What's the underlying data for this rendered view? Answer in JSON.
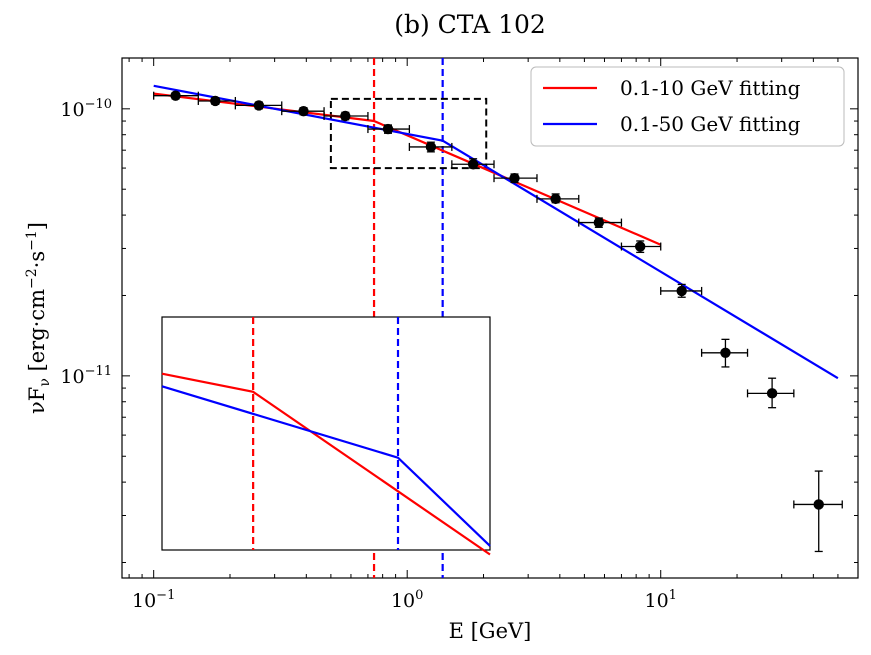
{
  "chart_data": {
    "type": "scatter",
    "title": "(b)  CTA 102",
    "xlabel": "E [GeV]",
    "ylabel": "νF",
    "ylabel_sub": "ν",
    "ylabel_unit_prefix": " [erg·cm",
    "ylabel_unit_sup1": "−2",
    "ylabel_unit_mid": "·s",
    "ylabel_unit_sup2": "−1",
    "ylabel_unit_suffix": "]",
    "xscale": "log",
    "yscale": "log",
    "xlim": [
      0.075,
      60
    ],
    "ylim": [
      1.75e-12,
      1.55e-10
    ],
    "x_ticks": [
      {
        "value": 0.1,
        "base": "10",
        "exp": "−1"
      },
      {
        "value": 1,
        "base": "10",
        "exp": "0"
      },
      {
        "value": 10,
        "base": "10",
        "exp": "1"
      }
    ],
    "y_ticks": [
      {
        "value": 1e-11,
        "base": "10",
        "exp": "−11"
      },
      {
        "value": 1e-10,
        "base": "10",
        "exp": "−10"
      }
    ],
    "points": [
      {
        "x": 0.122,
        "y": 1.12e-10,
        "xerr": [
          0.1,
          0.15
        ],
        "yerr": [
          1.09e-10,
          1.15e-10
        ]
      },
      {
        "x": 0.175,
        "y": 1.07e-10,
        "xerr": [
          0.15,
          0.21
        ],
        "yerr": [
          1.04e-10,
          1.1e-10
        ]
      },
      {
        "x": 0.26,
        "y": 1.03e-10,
        "xerr": [
          0.21,
          0.32
        ],
        "yerr": [
          1e-10,
          1.06e-10
        ]
      },
      {
        "x": 0.39,
        "y": 9.8e-11,
        "xerr": [
          0.32,
          0.47
        ],
        "yerr": [
          9.5e-11,
          1.01e-10
        ]
      },
      {
        "x": 0.57,
        "y": 9.4e-11,
        "xerr": [
          0.47,
          0.7
        ],
        "yerr": [
          9.1e-11,
          9.7e-11
        ]
      },
      {
        "x": 0.84,
        "y": 8.4e-11,
        "xerr": [
          0.7,
          1.02
        ],
        "yerr": [
          8.1e-11,
          8.7e-11
        ]
      },
      {
        "x": 1.24,
        "y": 7.2e-11,
        "xerr": [
          1.02,
          1.5
        ],
        "yerr": [
          6.9e-11,
          7.5e-11
        ]
      },
      {
        "x": 1.82,
        "y": 6.2e-11,
        "xerr": [
          1.5,
          2.2
        ],
        "yerr": [
          6e-11,
          6.5e-11
        ]
      },
      {
        "x": 2.65,
        "y": 5.5e-11,
        "xerr": [
          2.2,
          3.25
        ],
        "yerr": [
          5.3e-11,
          5.7e-11
        ]
      },
      {
        "x": 3.85,
        "y": 4.6e-11,
        "xerr": [
          3.25,
          4.75
        ],
        "yerr": [
          4.45e-11,
          4.8e-11
        ]
      },
      {
        "x": 5.7,
        "y": 3.75e-11,
        "xerr": [
          4.75,
          7.0
        ],
        "yerr": [
          3.6e-11,
          3.9e-11
        ]
      },
      {
        "x": 8.3,
        "y": 3.05e-11,
        "xerr": [
          7.0,
          10.0
        ],
        "yerr": [
          2.9e-11,
          3.2e-11
        ]
      },
      {
        "x": 12.1,
        "y": 2.08e-11,
        "xerr": [
          10.0,
          14.5
        ],
        "yerr": [
          1.97e-11,
          2.2e-11
        ]
      },
      {
        "x": 18.0,
        "y": 1.22e-11,
        "xerr": [
          14.5,
          22.0
        ],
        "yerr": [
          1.08e-11,
          1.37e-11
        ]
      },
      {
        "x": 27.5,
        "y": 8.6e-12,
        "xerr": [
          22.0,
          33.5
        ],
        "yerr": [
          7.6e-12,
          9.8e-12
        ]
      },
      {
        "x": 42.0,
        "y": 3.3e-12,
        "xerr": [
          33.5,
          52.0
        ],
        "yerr": [
          2.2e-12,
          4.4e-12
        ]
      }
    ],
    "series": [
      {
        "name": "0.1-10 GeV fitting",
        "color": "#ff0000",
        "x": [
          0.1,
          0.74,
          10
        ],
        "y": [
          1.14e-10,
          9e-11,
          3.1e-11
        ]
      },
      {
        "name": "0.1-50 GeV fitting",
        "color": "#0000ff",
        "x": [
          0.1,
          1.38,
          50
        ],
        "y": [
          1.22e-10,
          7.6e-11,
          9.8e-12
        ]
      }
    ],
    "vlines": [
      {
        "x": 0.74,
        "color": "#ff0000",
        "style": "dashed"
      },
      {
        "x": 1.38,
        "color": "#0000ff",
        "style": "dashed"
      }
    ],
    "zoom_box": {
      "xlim": [
        0.5,
        2.05
      ],
      "ylim": [
        6e-11,
        1.09e-10
      ],
      "style": "dashed",
      "color": "#000000"
    },
    "legend_position": "top-right"
  }
}
